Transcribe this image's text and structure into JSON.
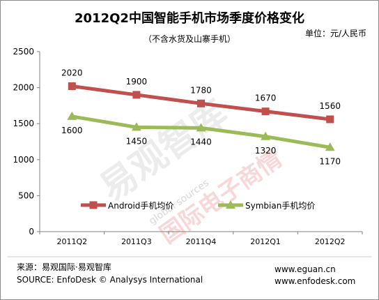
{
  "chart_data": {
    "type": "line",
    "title": "2012Q2中国智能手机市场季度价格变化",
    "subtitle": "（不含水货及山寨手机）",
    "unit": "单位：元/人民币",
    "categories": [
      "2011Q2",
      "2011Q3",
      "2011Q4",
      "2012Q1",
      "2012Q2"
    ],
    "ylim": [
      0,
      2500
    ],
    "yticks": [
      0,
      500,
      1000,
      1500,
      2000,
      2500
    ],
    "legend_position": "middle",
    "grid": false,
    "series": [
      {
        "name": "Android手机均价",
        "values": [
          2020,
          1900,
          1780,
          1670,
          1560
        ],
        "color": "#c0504d"
      },
      {
        "name": "Symbian手机均价",
        "values": [
          1600,
          1450,
          1440,
          1320,
          1170
        ],
        "color": "#9bbb59"
      }
    ]
  },
  "watermark": {
    "main": "易观智库",
    "secondary": "国际电子商情",
    "small": "global sources"
  },
  "footer": {
    "source_cn": "来源：易观国际·易观智库",
    "source_en": "SOURCE: EnfoDesk © Analysys International",
    "url1": "www.eguan.cn",
    "url2": "www.enfodesk.com"
  }
}
